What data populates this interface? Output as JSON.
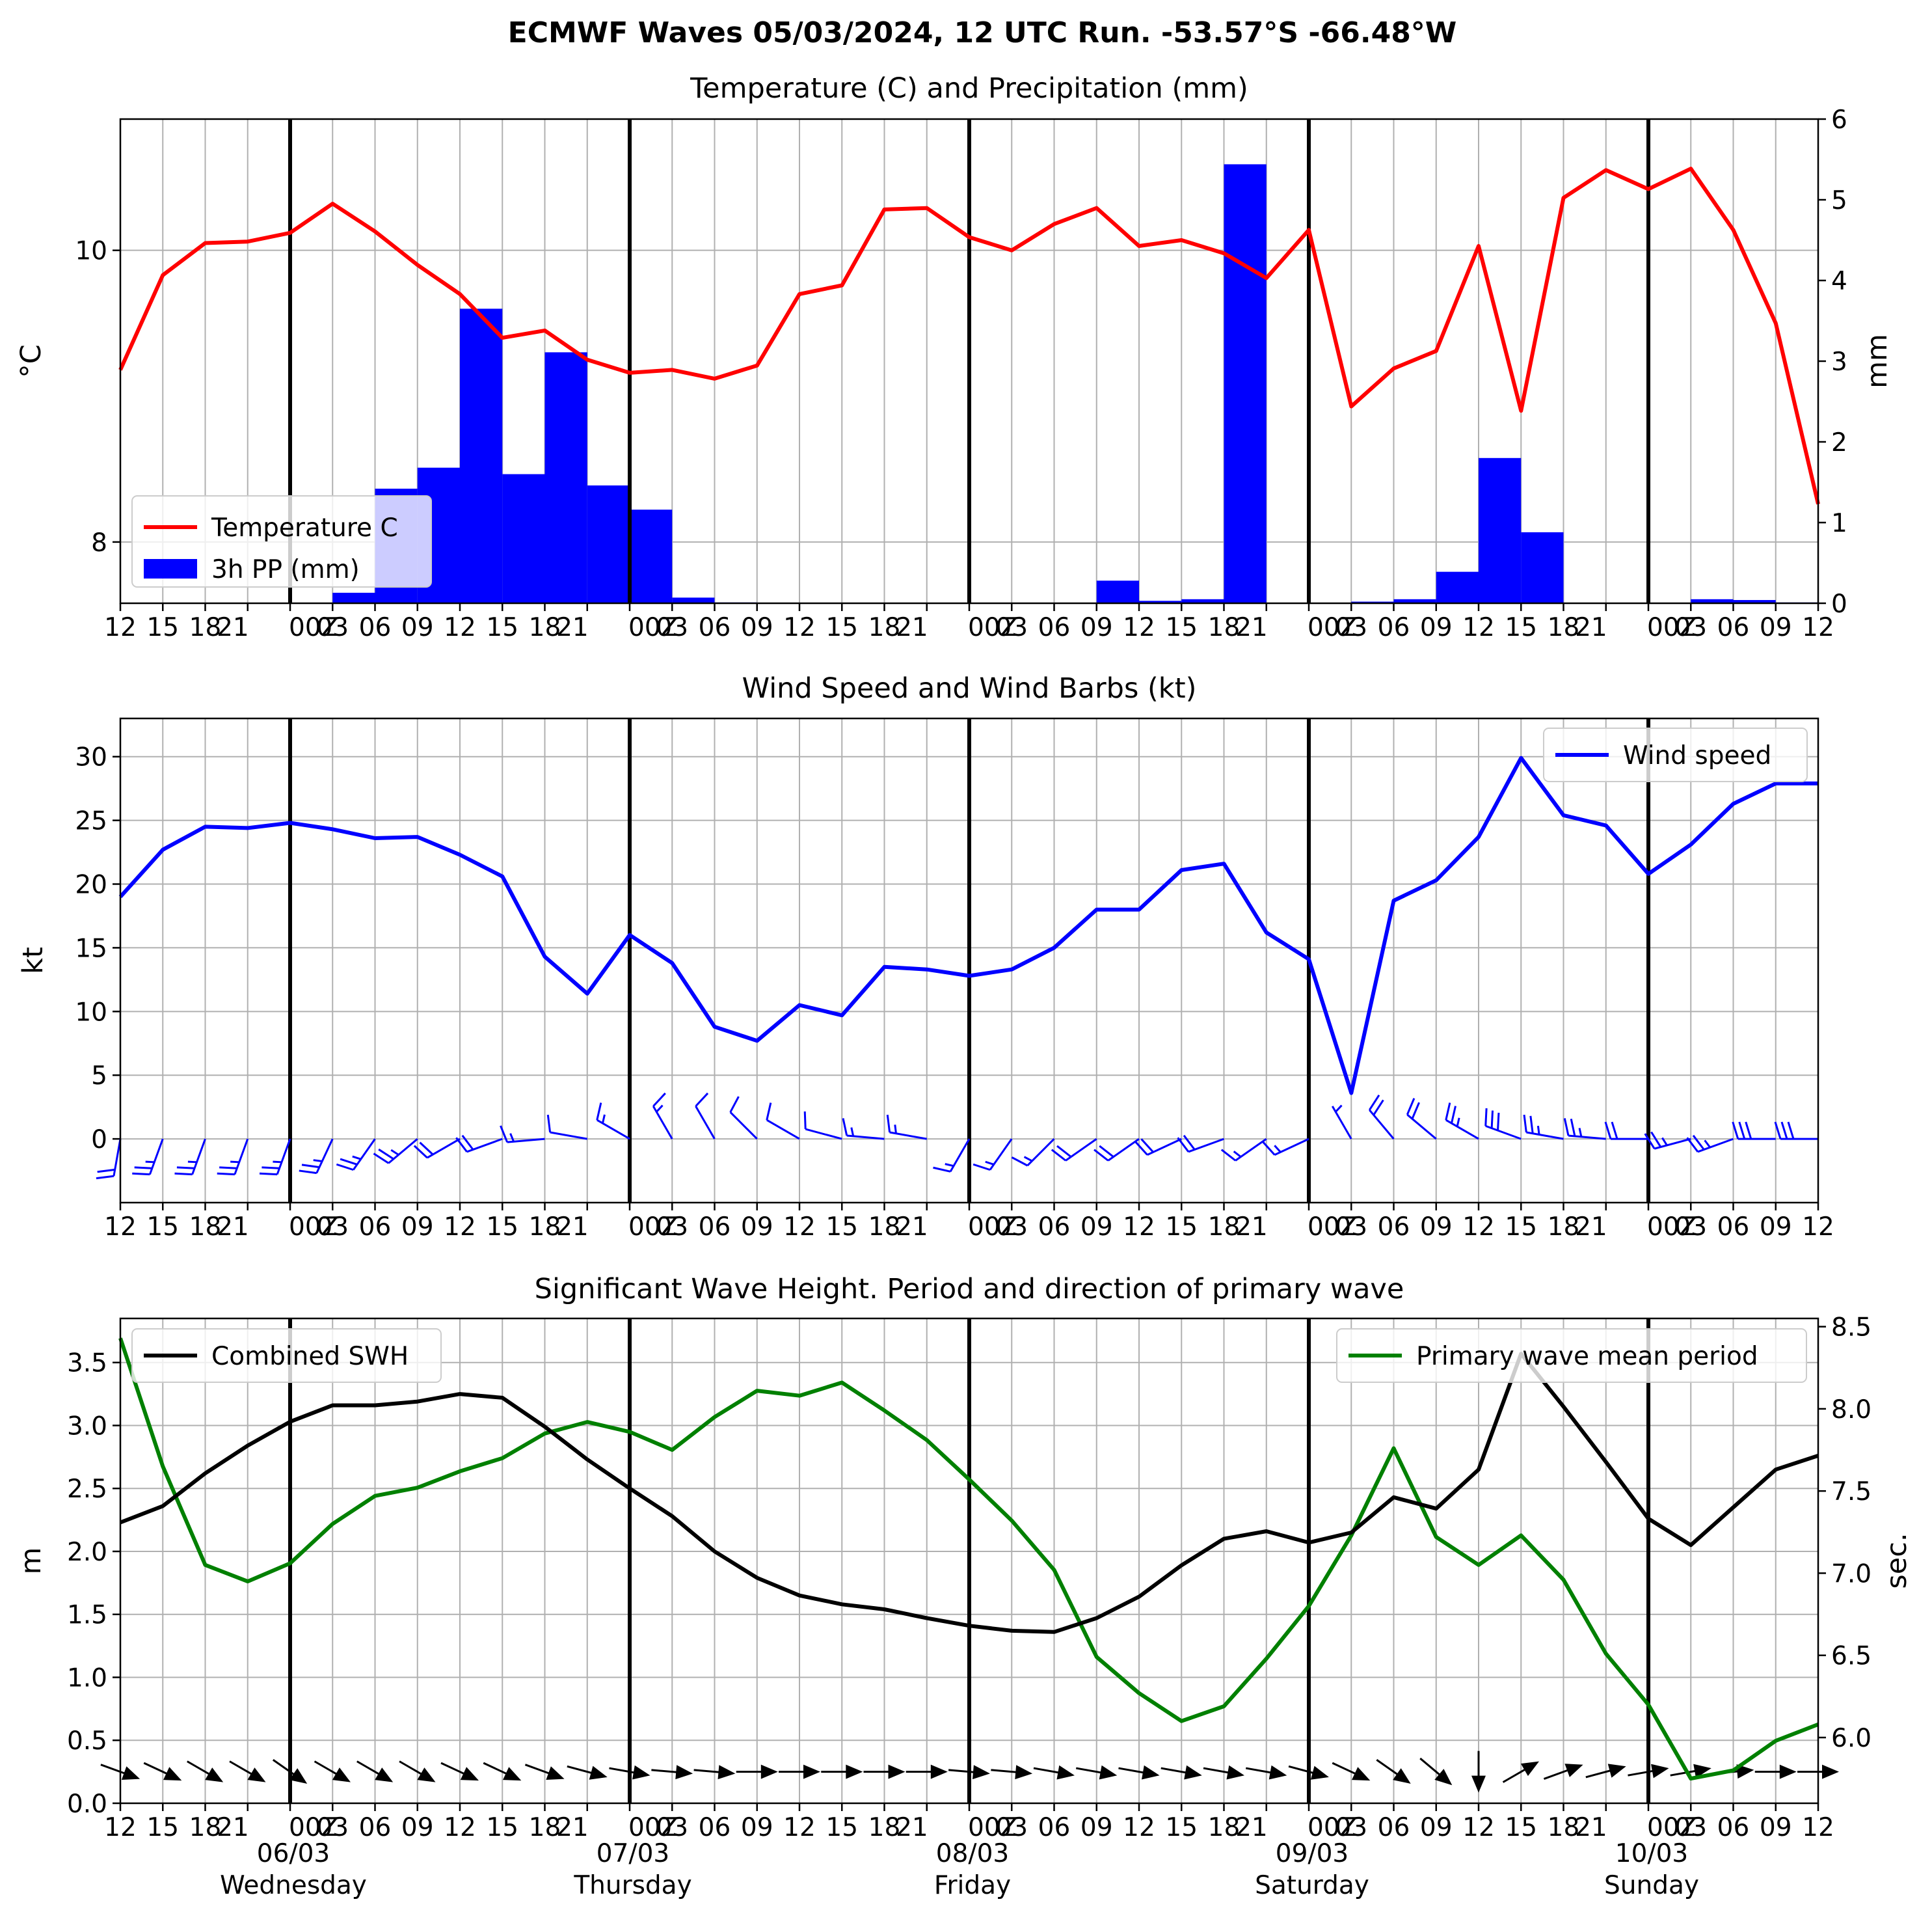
{
  "title": "ECMWF Waves 05/03/2024, 12 UTC Run. -53.57°S -66.48°W",
  "time_tick_labels": [
    "12",
    "15",
    "18",
    "21",
    "00Z",
    "03",
    "06",
    "09",
    "12",
    "15",
    "18",
    "21",
    "00Z",
    "03",
    "06",
    "09",
    "12",
    "15",
    "18",
    "21",
    "00Z",
    "03",
    "06",
    "09",
    "12",
    "15",
    "18",
    "21",
    "00Z",
    "03",
    "06",
    "09",
    "12",
    "15",
    "18",
    "21",
    "00Z",
    "03",
    "06",
    "09",
    "12"
  ],
  "date_labels": [
    {
      "date": "06/03",
      "day": "Wednesday"
    },
    {
      "date": "07/03",
      "day": "Thursday"
    },
    {
      "date": "08/03",
      "day": "Friday"
    },
    {
      "date": "09/03",
      "day": "Saturday"
    },
    {
      "date": "10/03",
      "day": "Sunday"
    }
  ],
  "colors": {
    "temperature": "#ff0000",
    "precip": "#0000ff",
    "wind": "#0000ff",
    "swh": "#000000",
    "period": "#008000"
  },
  "chart_data": [
    {
      "type": "line",
      "title": "Temperature (C) and Precipitation (mm)",
      "ylabel": "$^\\circ$C",
      "ylabel_right": "mm",
      "y_ticks": [
        "8",
        "10"
      ],
      "y_right_ticks": [
        "0",
        "1",
        "2",
        "3",
        "4",
        "5",
        "6"
      ],
      "ylim": [
        7.58,
        10.9
      ],
      "ylim_right": [
        0,
        6
      ],
      "legend": {
        "position": "lower-left",
        "items": [
          "Temperature C",
          "3h PP (mm)"
        ]
      },
      "grid": true,
      "series": [
        {
          "name": "Temperature C",
          "values": [
            9.18,
            9.83,
            10.05,
            10.06,
            10.12,
            10.32,
            10.13,
            9.9,
            9.7,
            9.4,
            9.45,
            9.25,
            9.16,
            9.18,
            9.12,
            9.21,
            9.7,
            9.76,
            10.28,
            10.29,
            10.09,
            10.0,
            10.18,
            10.29,
            10.03,
            10.07,
            9.98,
            9.81,
            10.14,
            8.93,
            9.19,
            9.31,
            10.03,
            8.9,
            10.36,
            10.55,
            10.42,
            10.56,
            10.14,
            9.5,
            8.26
          ]
        },
        {
          "name": "3h PP (mm)",
          "type": "bar",
          "values": [
            0,
            0,
            0,
            0,
            0,
            0.13,
            1.42,
            1.68,
            3.65,
            1.6,
            3.11,
            1.46,
            1.16,
            0.07,
            0.01,
            0,
            0,
            0,
            0,
            0,
            0,
            0,
            0,
            0.28,
            0.03,
            0.05,
            5.44,
            0,
            0,
            0.02,
            0.05,
            0.39,
            1.8,
            0.88,
            0,
            0,
            0,
            0.05,
            0.04,
            0.01
          ]
        }
      ]
    },
    {
      "type": "line",
      "title": "Wind Speed and Wind Barbs (kt)",
      "ylabel": "kt",
      "y_ticks": [
        "0",
        "5",
        "10",
        "15",
        "20",
        "25",
        "30"
      ],
      "ylim": [
        -5,
        33
      ],
      "legend": {
        "position": "upper-right",
        "items": [
          "Wind speed"
        ]
      },
      "grid": true,
      "series": [
        {
          "name": "Wind speed",
          "values": [
            19.0,
            22.7,
            24.5,
            24.4,
            24.8,
            24.3,
            23.6,
            23.7,
            22.3,
            20.6,
            14.3,
            11.4,
            16.0,
            13.8,
            8.8,
            7.7,
            10.5,
            9.7,
            13.5,
            13.3,
            12.8,
            13.3,
            15.0,
            18.0,
            18.0,
            21.1,
            21.6,
            16.2,
            14.1,
            3.6,
            18.7,
            20.3,
            23.7,
            29.9,
            25.4,
            24.6,
            20.8,
            23.1,
            26.3,
            27.9,
            27.9
          ]
        },
        {
          "name": "wind barbs",
          "type": "barbs",
          "speeds": [
            19.0,
            22.7,
            24.5,
            24.4,
            24.8,
            24.3,
            23.6,
            23.7,
            22.3,
            20.6,
            14.3,
            11.4,
            16.0,
            13.8,
            8.8,
            7.7,
            10.5,
            9.7,
            13.5,
            13.3,
            12.8,
            13.3,
            15.0,
            18.0,
            18.0,
            21.1,
            21.6,
            16.2,
            14.1,
            3.6,
            18.7,
            20.3,
            23.7,
            29.9,
            25.4,
            24.6,
            20.8,
            23.1,
            26.3,
            27.9,
            27.9
          ],
          "from_direction_deg": [
            190,
            200,
            200,
            200,
            200,
            205,
            215,
            230,
            240,
            250,
            265,
            280,
            300,
            330,
            330,
            315,
            300,
            285,
            275,
            280,
            210,
            215,
            225,
            235,
            235,
            245,
            250,
            235,
            245,
            330,
            320,
            310,
            300,
            290,
            280,
            275,
            270,
            255,
            250,
            270,
            270
          ]
        }
      ]
    },
    {
      "type": "line",
      "title": "Significant Wave Height. Period and direction of primary wave",
      "ylabel": "m",
      "ylabel_right": "sec.",
      "y_ticks": [
        "0.0",
        "0.5",
        "1.0",
        "1.5",
        "2.0",
        "2.5",
        "3.0",
        "3.5"
      ],
      "y_right_ticks": [
        "6.0",
        "6.5",
        "7.0",
        "7.5",
        "8.0",
        "8.5"
      ],
      "ylim": [
        0,
        3.85
      ],
      "ylim_right": [
        5.6,
        8.55
      ],
      "legend": {
        "items": [
          "Combined SWH",
          "Primary wave mean period"
        ],
        "positions": [
          "upper-left",
          "upper-right"
        ]
      },
      "grid": true,
      "series": [
        {
          "name": "Combined SWH",
          "values": [
            2.23,
            2.36,
            2.62,
            2.84,
            3.03,
            3.16,
            3.16,
            3.19,
            3.25,
            3.22,
            2.99,
            2.73,
            2.5,
            2.28,
            2.0,
            1.79,
            1.65,
            1.58,
            1.54,
            1.47,
            1.41,
            1.37,
            1.36,
            1.47,
            1.64,
            1.89,
            2.1,
            2.16,
            2.07,
            2.15,
            2.43,
            2.34,
            2.65,
            3.57,
            3.15,
            2.71,
            2.26,
            2.05,
            2.35,
            2.65,
            2.76
          ]
        },
        {
          "name": "Primary wave mean period",
          "axis": "right",
          "values": [
            8.43,
            7.65,
            7.05,
            6.95,
            7.06,
            7.3,
            7.47,
            7.52,
            7.62,
            7.7,
            7.85,
            7.92,
            7.86,
            7.75,
            7.95,
            8.11,
            8.08,
            8.16,
            7.99,
            7.81,
            7.57,
            7.32,
            7.02,
            6.49,
            6.27,
            6.1,
            6.19,
            6.48,
            6.8,
            7.23,
            7.76,
            7.22,
            7.05,
            7.23,
            6.96,
            6.51,
            6.2,
            5.75,
            5.8,
            5.98,
            6.08
          ]
        },
        {
          "name": "primary wave direction",
          "type": "arrows",
          "from_direction_deg": [
            290,
            295,
            300,
            300,
            305,
            300,
            300,
            300,
            295,
            295,
            290,
            285,
            280,
            275,
            275,
            270,
            270,
            270,
            270,
            270,
            275,
            275,
            280,
            280,
            280,
            280,
            280,
            280,
            285,
            295,
            305,
            310,
            0,
            240,
            250,
            255,
            260,
            260,
            265,
            270,
            270
          ]
        }
      ]
    }
  ]
}
